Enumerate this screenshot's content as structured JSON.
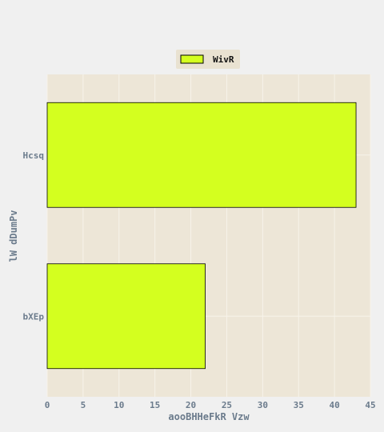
{
  "chart_data": {
    "type": "bar",
    "orientation": "horizontal",
    "categories": [
      "Hcsq",
      "bXEp"
    ],
    "series": [
      {
        "name": "WivR",
        "values": [
          43,
          22
        ],
        "color": "#d4ff1f"
      }
    ],
    "xlabel": "aooBHHeFkR Vzw",
    "ylabel": "lW dDumPv",
    "xlim": [
      0,
      45
    ],
    "xticks": [
      0,
      5,
      10,
      15,
      20,
      25,
      30,
      35,
      40,
      45
    ],
    "grid": true,
    "legend_position": "top-center",
    "colors": {
      "page_background": "#f0f0f0",
      "plot_background": "#ede6d7",
      "grid": "#f7f3ea",
      "bar_edge": "#000000",
      "tick_text": "#6b7b8c",
      "legend_background": "#e9e2d1"
    }
  }
}
